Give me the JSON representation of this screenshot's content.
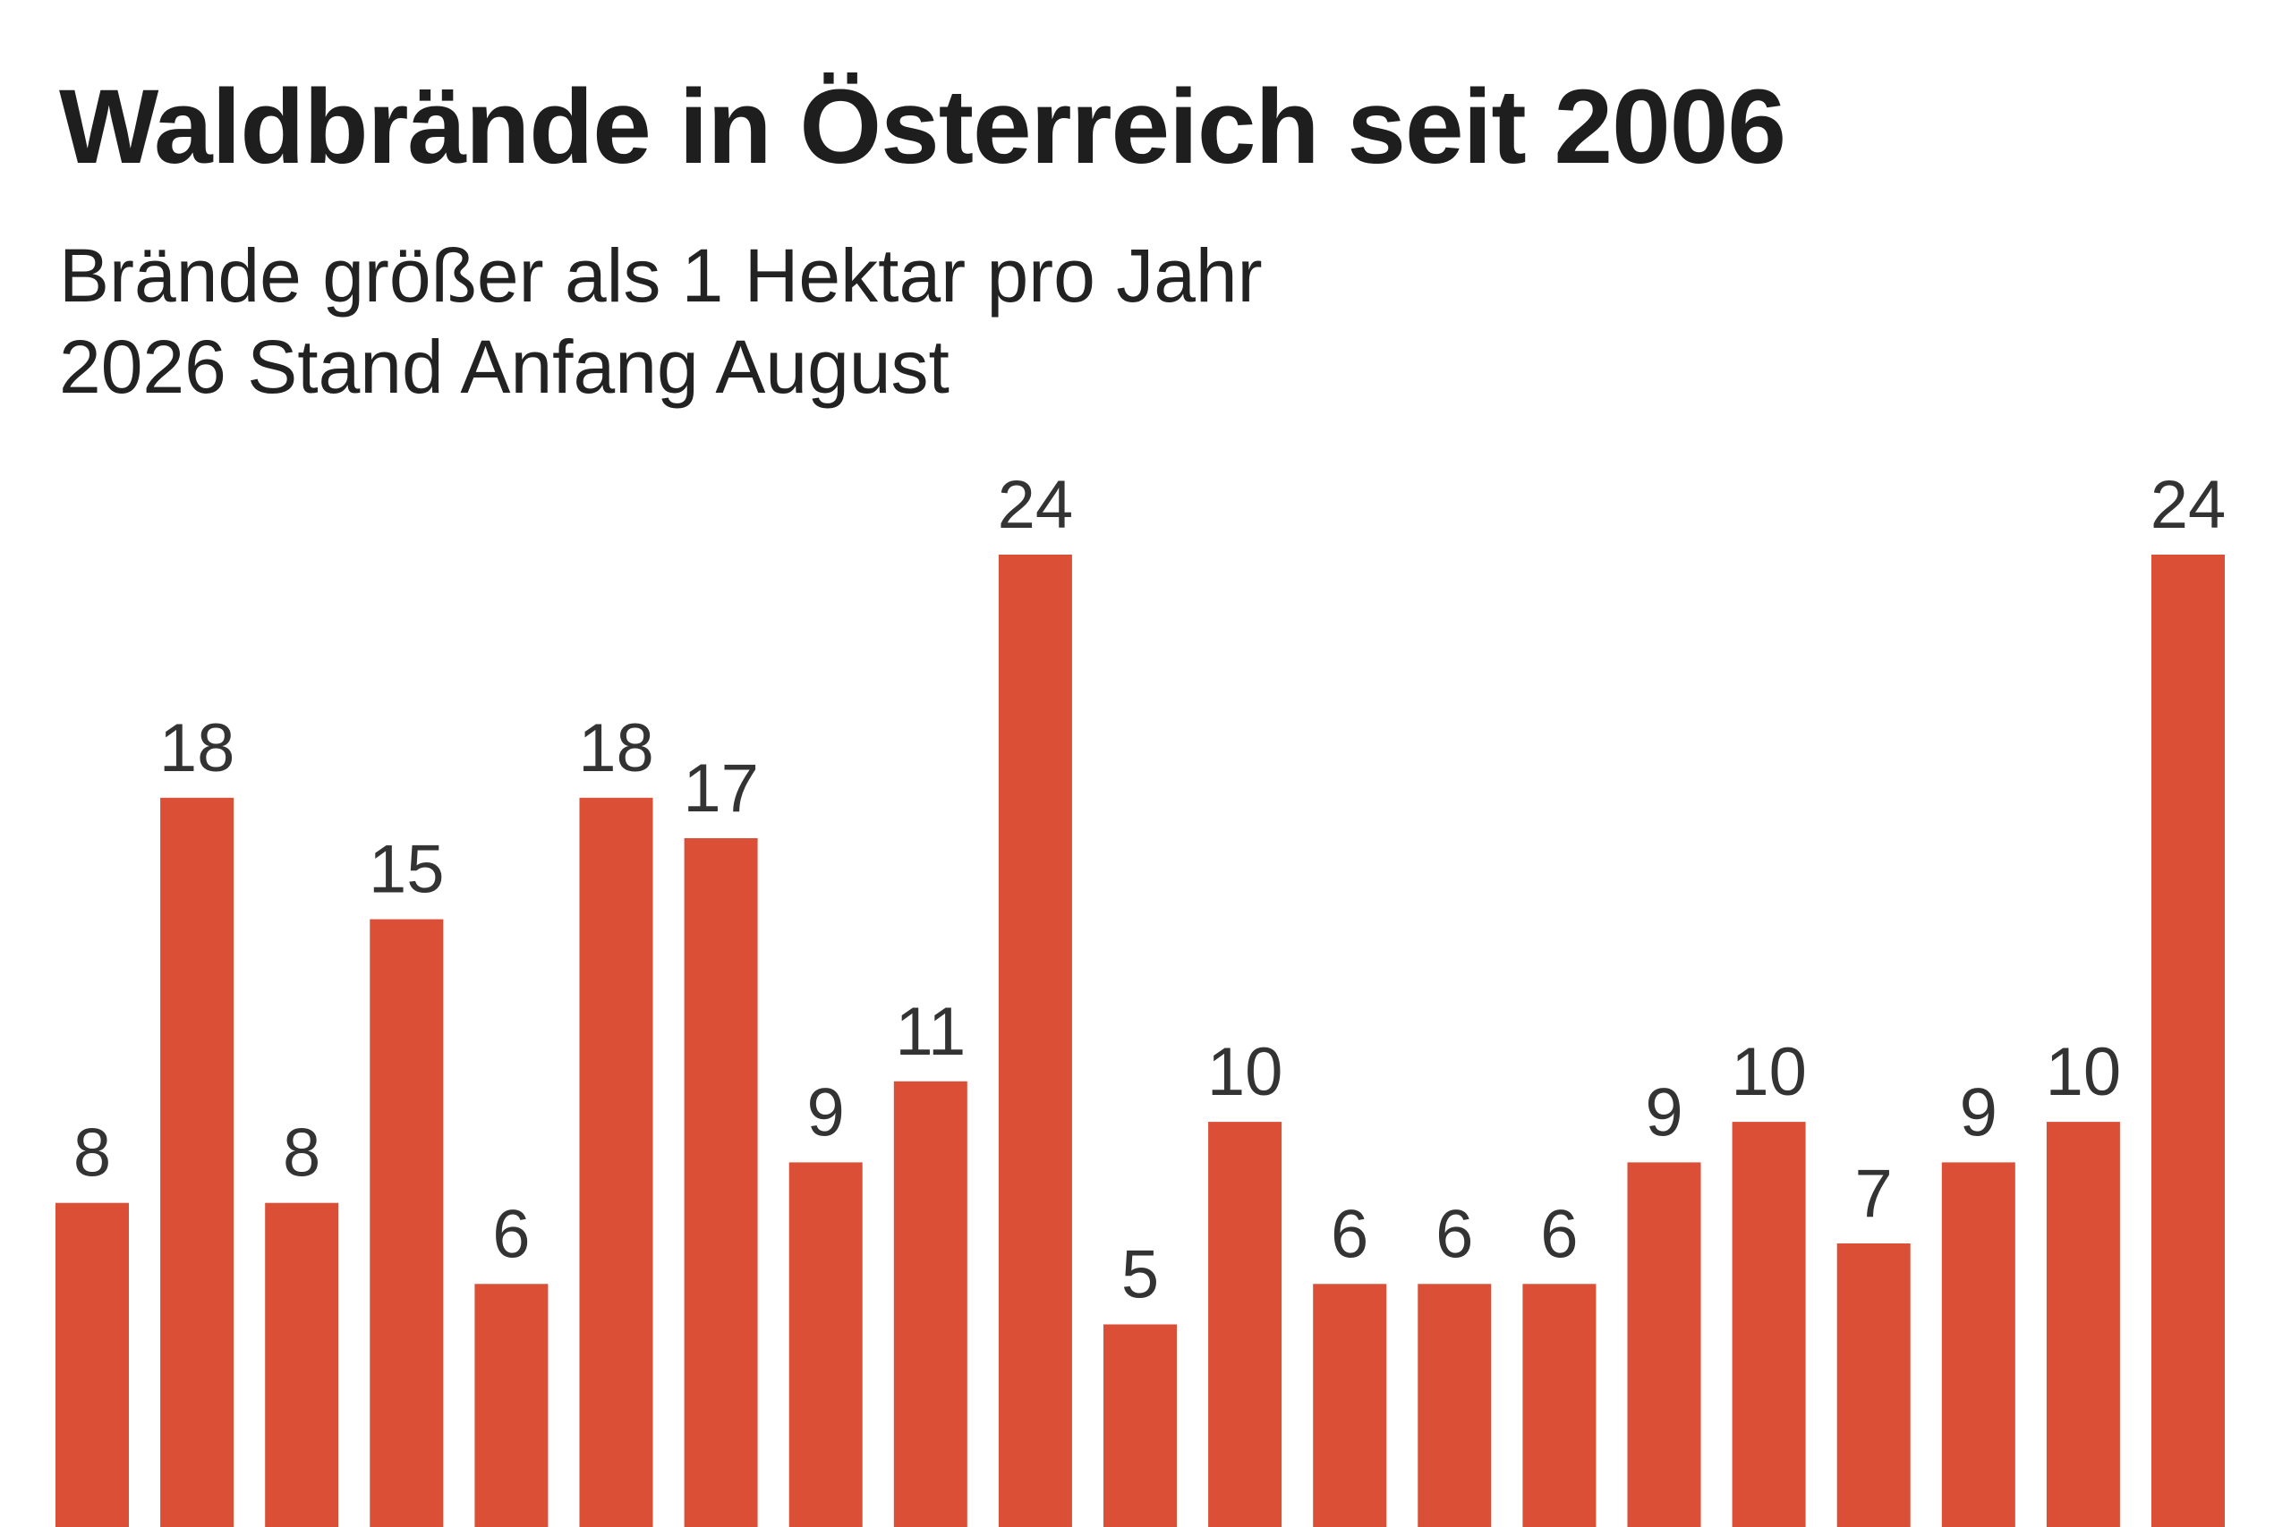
{
  "colors": {
    "bar": "#db4f36",
    "text": "#1e1e1e",
    "label": "#333333",
    "background": "#ffffff"
  },
  "chart_data": {
    "type": "bar",
    "title": "Waldbrände in Österreich seit 2006",
    "subtitle": [
      "Brände größer als 1 Hektar pro Jahr",
      "2026 Stand Anfang August"
    ],
    "xlabel": "",
    "ylabel": "",
    "ylim": [
      0,
      24
    ],
    "grid": false,
    "legend": "none",
    "data_labels": true,
    "values": [
      8,
      18,
      8,
      15,
      6,
      18,
      17,
      9,
      11,
      24,
      5,
      10,
      6,
      6,
      6,
      9,
      10,
      7,
      9,
      10,
      24
    ]
  }
}
